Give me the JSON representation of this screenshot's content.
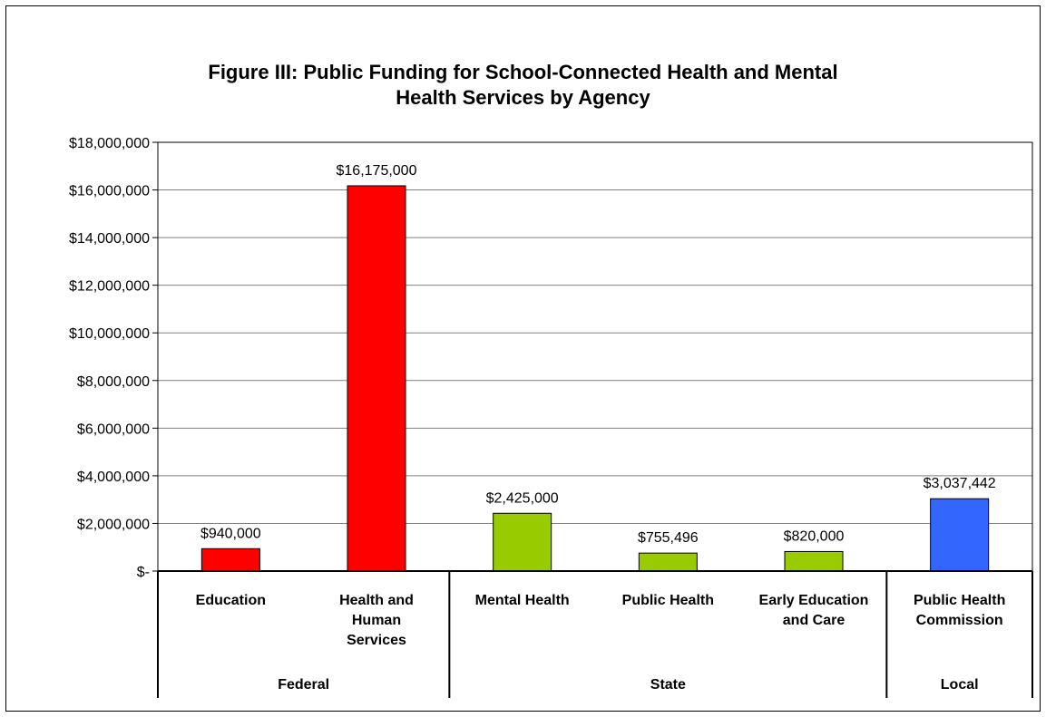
{
  "chart_data": {
    "type": "bar",
    "title_lines": [
      "Figure III: Public Funding for School-Connected Health and Mental",
      "Health Services by Agency"
    ],
    "y_tick_labels": [
      "$-",
      "$2,000,000",
      "$4,000,000",
      "$6,000,000",
      "$8,000,000",
      "$10,000,000",
      "$12,000,000",
      "$14,000,000",
      "$16,000,000",
      "$18,000,000"
    ],
    "ylim": [
      0,
      18000000
    ],
    "grid": true,
    "categories": [
      {
        "label_lines": [
          "Education"
        ],
        "group": "Federal",
        "value": 940000,
        "value_label": "$940,000",
        "color": "#ff0000"
      },
      {
        "label_lines": [
          "Health and",
          "Human",
          "Services"
        ],
        "group": "Federal",
        "value": 16175000,
        "value_label": "$16,175,000",
        "color": "#ff0000"
      },
      {
        "label_lines": [
          "Mental Health"
        ],
        "group": "State",
        "value": 2425000,
        "value_label": "$2,425,000",
        "color": "#99cc00"
      },
      {
        "label_lines": [
          "Public Health"
        ],
        "group": "State",
        "value": 755496,
        "value_label": "$755,496",
        "color": "#99cc00"
      },
      {
        "label_lines": [
          "Early Education",
          "and Care"
        ],
        "group": "State",
        "value": 820000,
        "value_label": "$820,000",
        "color": "#99cc00"
      },
      {
        "label_lines": [
          "Public Health",
          "Commission"
        ],
        "group": "Local",
        "value": 3037442,
        "value_label": "$3,037,442",
        "color": "#3366ff"
      }
    ],
    "groups": [
      {
        "label": "Federal",
        "count": 2
      },
      {
        "label": "State",
        "count": 3
      },
      {
        "label": "Local",
        "count": 1
      }
    ]
  }
}
